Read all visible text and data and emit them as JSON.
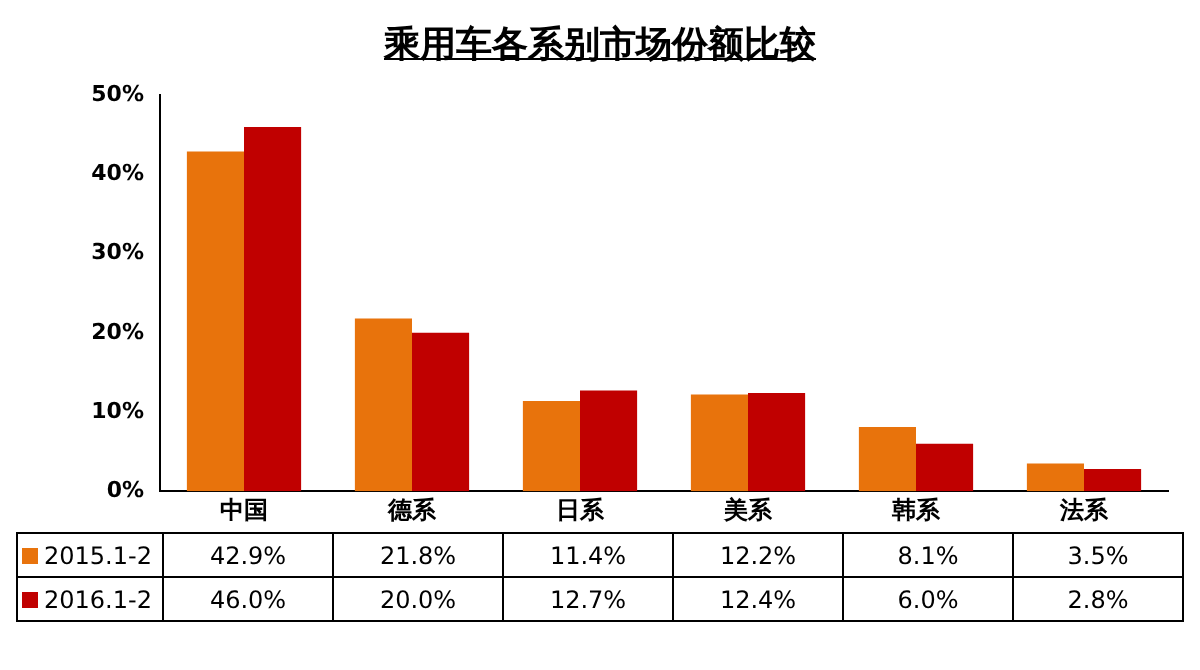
{
  "chart_data": {
    "type": "bar",
    "title": "乘用车各系别市场份额比较",
    "categories": [
      "中国",
      "德系",
      "日系",
      "美系",
      "韩系",
      "法系"
    ],
    "series": [
      {
        "name": "2015.1-2",
        "color": "#e8730c",
        "values": [
          42.9,
          21.8,
          11.4,
          12.2,
          8.1,
          3.5
        ],
        "value_labels": [
          "42.9%",
          "21.8%",
          "11.4%",
          "12.2%",
          "8.1%",
          "3.5%"
        ]
      },
      {
        "name": "2016.1-2",
        "color": "#c00000",
        "values": [
          46.0,
          20.0,
          12.7,
          12.4,
          6.0,
          2.8
        ],
        "value_labels": [
          "46.0%",
          "20.0%",
          "12.7%",
          "12.4%",
          "6.0%",
          "2.8%"
        ]
      }
    ],
    "ylim": [
      0,
      50
    ],
    "yticks": [
      {
        "value": 0,
        "label": "0%"
      },
      {
        "value": 10,
        "label": "10%"
      },
      {
        "value": 20,
        "label": "20%"
      },
      {
        "value": 30,
        "label": "30%"
      },
      {
        "value": 40,
        "label": "40%"
      },
      {
        "value": 50,
        "label": "50%"
      }
    ],
    "grid": false,
    "legend": "bottom"
  }
}
